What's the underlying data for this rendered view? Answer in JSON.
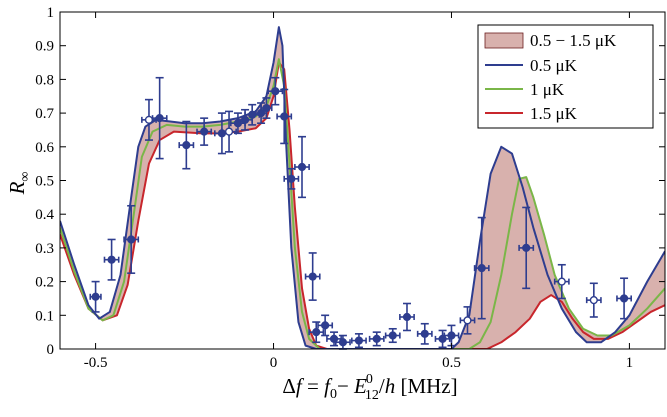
{
  "chart_data": {
    "type": "line",
    "xlabel": "Δf = f₀ − E⁰₁₂/h [MHz]",
    "ylabel": "R∞",
    "xlim": [
      -0.6,
      1.1
    ],
    "ylim": [
      0,
      1
    ],
    "x_ticks": [
      "-0.5",
      "0",
      "0.5",
      "1"
    ],
    "y_ticks": [
      "0",
      "0.1",
      "0.2",
      "0.3",
      "0.4",
      "0.5",
      "0.6",
      "0.7",
      "0.8",
      "0.9",
      "1"
    ],
    "grid": false,
    "legend_position": "top-right",
    "legend": {
      "band": "0.5 − 1.5 μK",
      "l05": "0.5 μK",
      "l1": "1 μK",
      "l15": "1.5 μK"
    },
    "band": {
      "name": "0.5 − 1.5 μK",
      "color": "#d8b1ad",
      "edge_color": "#6b1e1e"
    },
    "series": [
      {
        "name": "0.5 μK",
        "color": "#2e3d8f",
        "points": [
          [
            -0.6,
            0.38
          ],
          [
            -0.56,
            0.25
          ],
          [
            -0.52,
            0.13
          ],
          [
            -0.49,
            0.09
          ],
          [
            -0.46,
            0.11
          ],
          [
            -0.43,
            0.22
          ],
          [
            -0.4,
            0.45
          ],
          [
            -0.38,
            0.6
          ],
          [
            -0.36,
            0.66
          ],
          [
            -0.33,
            0.68
          ],
          [
            -0.29,
            0.675
          ],
          [
            -0.25,
            0.67
          ],
          [
            -0.2,
            0.67
          ],
          [
            -0.15,
            0.675
          ],
          [
            -0.1,
            0.685
          ],
          [
            -0.05,
            0.705
          ],
          [
            -0.02,
            0.75
          ],
          [
            0.0,
            0.85
          ],
          [
            0.015,
            0.955
          ],
          [
            0.025,
            0.9
          ],
          [
            0.035,
            0.62
          ],
          [
            0.05,
            0.3
          ],
          [
            0.07,
            0.08
          ],
          [
            0.09,
            0.01
          ],
          [
            0.12,
            0.0
          ],
          [
            0.5,
            0.0
          ],
          [
            0.52,
            0.02
          ],
          [
            0.55,
            0.1
          ],
          [
            0.58,
            0.32
          ],
          [
            0.61,
            0.52
          ],
          [
            0.64,
            0.6
          ],
          [
            0.67,
            0.58
          ],
          [
            0.7,
            0.48
          ],
          [
            0.73,
            0.36
          ],
          [
            0.77,
            0.22
          ],
          [
            0.81,
            0.12
          ],
          [
            0.85,
            0.05
          ],
          [
            0.88,
            0.02
          ],
          [
            0.92,
            0.02
          ],
          [
            0.96,
            0.05
          ],
          [
            1.0,
            0.1
          ],
          [
            1.05,
            0.2
          ],
          [
            1.1,
            0.29
          ]
        ]
      },
      {
        "name": "1 μK",
        "color": "#7ab648",
        "points": [
          [
            -0.6,
            0.36
          ],
          [
            -0.56,
            0.23
          ],
          [
            -0.52,
            0.12
          ],
          [
            -0.48,
            0.085
          ],
          [
            -0.45,
            0.1
          ],
          [
            -0.42,
            0.2
          ],
          [
            -0.39,
            0.42
          ],
          [
            -0.37,
            0.57
          ],
          [
            -0.34,
            0.645
          ],
          [
            -0.3,
            0.665
          ],
          [
            -0.25,
            0.66
          ],
          [
            -0.2,
            0.66
          ],
          [
            -0.15,
            0.665
          ],
          [
            -0.1,
            0.675
          ],
          [
            -0.05,
            0.69
          ],
          [
            -0.02,
            0.72
          ],
          [
            0.0,
            0.78
          ],
          [
            0.015,
            0.86
          ],
          [
            0.03,
            0.78
          ],
          [
            0.045,
            0.55
          ],
          [
            0.06,
            0.3
          ],
          [
            0.08,
            0.11
          ],
          [
            0.1,
            0.03
          ],
          [
            0.13,
            0.0
          ],
          [
            0.55,
            0.0
          ],
          [
            0.58,
            0.02
          ],
          [
            0.61,
            0.08
          ],
          [
            0.64,
            0.22
          ],
          [
            0.67,
            0.4
          ],
          [
            0.69,
            0.505
          ],
          [
            0.71,
            0.51
          ],
          [
            0.73,
            0.45
          ],
          [
            0.76,
            0.34
          ],
          [
            0.79,
            0.22
          ],
          [
            0.83,
            0.12
          ],
          [
            0.87,
            0.06
          ],
          [
            0.91,
            0.04
          ],
          [
            0.95,
            0.04
          ],
          [
            1.0,
            0.07
          ],
          [
            1.05,
            0.12
          ],
          [
            1.1,
            0.18
          ]
        ]
      },
      {
        "name": "1.5 μK",
        "color": "#c8262c",
        "points": [
          [
            -0.6,
            0.34
          ],
          [
            -0.56,
            0.22
          ],
          [
            -0.52,
            0.12
          ],
          [
            -0.48,
            0.085
          ],
          [
            -0.44,
            0.1
          ],
          [
            -0.41,
            0.19
          ],
          [
            -0.38,
            0.38
          ],
          [
            -0.35,
            0.55
          ],
          [
            -0.32,
            0.62
          ],
          [
            -0.28,
            0.645
          ],
          [
            -0.2,
            0.64
          ],
          [
            -0.15,
            0.64
          ],
          [
            -0.1,
            0.645
          ],
          [
            -0.05,
            0.655
          ],
          [
            -0.02,
            0.685
          ],
          [
            0.0,
            0.75
          ],
          [
            0.015,
            0.85
          ],
          [
            0.03,
            0.83
          ],
          [
            0.045,
            0.65
          ],
          [
            0.06,
            0.42
          ],
          [
            0.08,
            0.18
          ],
          [
            0.1,
            0.06
          ],
          [
            0.12,
            0.01
          ],
          [
            0.15,
            0.0
          ],
          [
            0.6,
            0.0
          ],
          [
            0.64,
            0.02
          ],
          [
            0.68,
            0.05
          ],
          [
            0.72,
            0.09
          ],
          [
            0.75,
            0.14
          ],
          [
            0.78,
            0.16
          ],
          [
            0.81,
            0.14
          ],
          [
            0.84,
            0.09
          ],
          [
            0.87,
            0.05
          ],
          [
            0.9,
            0.03
          ],
          [
            0.94,
            0.03
          ],
          [
            0.98,
            0.05
          ],
          [
            1.02,
            0.08
          ],
          [
            1.06,
            0.11
          ],
          [
            1.1,
            0.13
          ]
        ]
      }
    ],
    "measured": {
      "color": "#2e3d8f",
      "points": [
        {
          "x": -0.5,
          "y": 0.155,
          "xerr": 0.015,
          "yerr": 0.045,
          "filled": true
        },
        {
          "x": -0.455,
          "y": 0.265,
          "xerr": 0.02,
          "yerr": 0.06,
          "filled": true
        },
        {
          "x": -0.4,
          "y": 0.325,
          "xerr": 0.02,
          "yerr": 0.1,
          "filled": true
        },
        {
          "x": -0.35,
          "y": 0.68,
          "xerr": 0.02,
          "yerr": 0.06,
          "filled": false
        },
        {
          "x": -0.32,
          "y": 0.685,
          "xerr": 0.02,
          "yerr": 0.12,
          "filled": true
        },
        {
          "x": -0.245,
          "y": 0.605,
          "xerr": 0.02,
          "yerr": 0.07,
          "filled": true
        },
        {
          "x": -0.195,
          "y": 0.645,
          "xerr": 0.02,
          "yerr": 0.04,
          "filled": true
        },
        {
          "x": -0.145,
          "y": 0.64,
          "xerr": 0.02,
          "yerr": 0.06,
          "filled": true
        },
        {
          "x": -0.125,
          "y": 0.645,
          "xerr": 0.02,
          "yerr": 0.06,
          "filled": false
        },
        {
          "x": -0.1,
          "y": 0.67,
          "xerr": 0.02,
          "yerr": 0.03,
          "filled": true
        },
        {
          "x": -0.08,
          "y": 0.68,
          "xerr": 0.02,
          "yerr": 0.03,
          "filled": true
        },
        {
          "x": -0.06,
          "y": 0.695,
          "xerr": 0.02,
          "yerr": 0.03,
          "filled": true
        },
        {
          "x": -0.035,
          "y": 0.7,
          "xerr": 0.015,
          "yerr": 0.03,
          "filled": true
        },
        {
          "x": -0.02,
          "y": 0.715,
          "xerr": 0.015,
          "yerr": 0.03,
          "filled": true
        },
        {
          "x": 0.005,
          "y": 0.765,
          "xerr": 0.02,
          "yerr": 0.04,
          "filled": true
        },
        {
          "x": 0.03,
          "y": 0.69,
          "xerr": 0.02,
          "yerr": 0.08,
          "filled": true
        },
        {
          "x": 0.05,
          "y": 0.505,
          "xerr": 0.02,
          "yerr": 0.03,
          "filled": true
        },
        {
          "x": 0.08,
          "y": 0.54,
          "xerr": 0.02,
          "yerr": 0.09,
          "filled": true
        },
        {
          "x": 0.11,
          "y": 0.215,
          "xerr": 0.02,
          "yerr": 0.07,
          "filled": true
        },
        {
          "x": 0.12,
          "y": 0.05,
          "xerr": 0.02,
          "yerr": 0.03,
          "filled": true
        },
        {
          "x": 0.145,
          "y": 0.07,
          "xerr": 0.02,
          "yerr": 0.03,
          "filled": true
        },
        {
          "x": 0.17,
          "y": 0.03,
          "xerr": 0.02,
          "yerr": 0.02,
          "filled": true
        },
        {
          "x": 0.195,
          "y": 0.02,
          "xerr": 0.02,
          "yerr": 0.02,
          "filled": true
        },
        {
          "x": 0.24,
          "y": 0.025,
          "xerr": 0.02,
          "yerr": 0.02,
          "filled": true
        },
        {
          "x": 0.29,
          "y": 0.03,
          "xerr": 0.02,
          "yerr": 0.02,
          "filled": true
        },
        {
          "x": 0.335,
          "y": 0.04,
          "xerr": 0.02,
          "yerr": 0.02,
          "filled": true
        },
        {
          "x": 0.375,
          "y": 0.095,
          "xerr": 0.02,
          "yerr": 0.04,
          "filled": true
        },
        {
          "x": 0.425,
          "y": 0.045,
          "xerr": 0.02,
          "yerr": 0.03,
          "filled": true
        },
        {
          "x": 0.475,
          "y": 0.03,
          "xerr": 0.02,
          "yerr": 0.025,
          "filled": true
        },
        {
          "x": 0.5,
          "y": 0.04,
          "xerr": 0.02,
          "yerr": 0.03,
          "filled": true
        },
        {
          "x": 0.545,
          "y": 0.085,
          "xerr": 0.02,
          "yerr": 0.04,
          "filled": false
        },
        {
          "x": 0.585,
          "y": 0.24,
          "xerr": 0.02,
          "yerr": 0.15,
          "filled": true
        },
        {
          "x": 0.71,
          "y": 0.3,
          "xerr": 0.02,
          "yerr": 0.12,
          "filled": true
        },
        {
          "x": 0.81,
          "y": 0.2,
          "xerr": 0.02,
          "yerr": 0.05,
          "filled": false
        },
        {
          "x": 0.9,
          "y": 0.145,
          "xerr": 0.02,
          "yerr": 0.05,
          "filled": false
        },
        {
          "x": 0.985,
          "y": 0.15,
          "xerr": 0.02,
          "yerr": 0.06,
          "filled": true
        }
      ]
    }
  }
}
